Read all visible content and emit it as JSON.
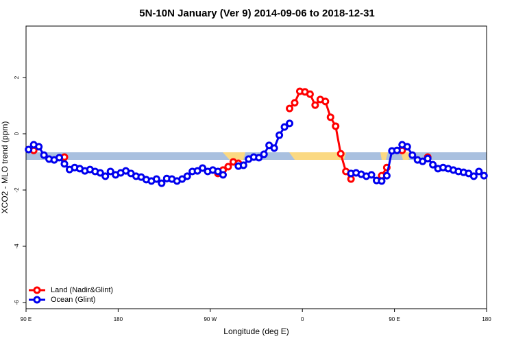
{
  "chart_data": {
    "type": "line",
    "title": "5N-10N January (Ver 9)   2014-09-06 to 2018-12-31",
    "xlabel": "Longitude (deg E)",
    "ylabel": "XCO2 - MLO trend (ppm)",
    "xlim": [
      90,
      540
    ],
    "ylim": [
      -6.22,
      3.83
    ],
    "xticks": [
      {
        "value": 90,
        "label": "90 E"
      },
      180,
      {
        "value": 270,
        "label": "90 W"
      },
      {
        "value": 360,
        "label": "0"
      },
      {
        "value": 450,
        "label": "90 E"
      },
      {
        "value": 540,
        "label": "180"
      }
    ],
    "yticks": [
      2,
      0,
      -2,
      -4,
      -6
    ],
    "legend": "bottom-left",
    "x": [
      92.5,
      97.5,
      102.5,
      107.5,
      112.5,
      117.5,
      122.5,
      127.5,
      132.5,
      137.5,
      142.5,
      147.5,
      152.5,
      157.5,
      162.5,
      167.5,
      172.5,
      177.5,
      182.5,
      187.5,
      192.5,
      197.5,
      202.5,
      207.5,
      212.5,
      217.5,
      222.5,
      227.5,
      232.5,
      237.5,
      242.5,
      247.5,
      252.5,
      257.5,
      262.5,
      267.5,
      272.5,
      277.5,
      282.5,
      287.5,
      292.5,
      297.5,
      302.5,
      307.5,
      312.5,
      317.5,
      322.5,
      327.5,
      332.5,
      337.5,
      342.5,
      347.5,
      352.5,
      357.5,
      362.5,
      367.5,
      372.5,
      377.5,
      382.5,
      387.5,
      392.5,
      397.5,
      402.5,
      407.5,
      412.5,
      417.5,
      422.5,
      427.5,
      432.5,
      437.5,
      442.5,
      447.5,
      452.5,
      457.5,
      462.5,
      467.5,
      472.5,
      477.5,
      482.5,
      487.5,
      492.5,
      497.5,
      502.5,
      507.5,
      512.5,
      517.5,
      522.5,
      527.5,
      532.5,
      537.5
    ],
    "series": [
      {
        "name": "Land (Nadir&Glint)",
        "color": "#ff0000",
        "values": [
          null,
          -0.59,
          null,
          null,
          null,
          null,
          null,
          -0.83,
          null,
          null,
          null,
          null,
          null,
          null,
          null,
          null,
          null,
          null,
          null,
          null,
          null,
          null,
          null,
          null,
          null,
          null,
          null,
          null,
          null,
          null,
          null,
          null,
          null,
          null,
          null,
          null,
          null,
          -1.41,
          -1.29,
          -1.17,
          -1.0,
          -1.05,
          null,
          null,
          null,
          null,
          null,
          null,
          null,
          null,
          null,
          0.9,
          1.1,
          1.51,
          1.49,
          1.41,
          1.02,
          1.22,
          1.15,
          0.59,
          0.27,
          -0.71,
          -1.34,
          -1.61,
          null,
          null,
          null,
          null,
          null,
          -1.49,
          -1.2,
          null,
          null,
          -0.59,
          null,
          null,
          null,
          null,
          -0.83,
          null,
          null,
          null,
          null,
          null,
          null,
          null,
          null,
          null,
          null,
          null
        ]
      },
      {
        "name": "Ocean (Glint)",
        "color": "#0000ee",
        "values": [
          -0.56,
          -0.39,
          -0.46,
          -0.76,
          -0.9,
          -0.93,
          -0.85,
          -1.07,
          -1.27,
          -1.2,
          -1.24,
          -1.32,
          -1.27,
          -1.34,
          -1.39,
          -1.51,
          -1.34,
          -1.46,
          -1.39,
          -1.32,
          -1.41,
          -1.51,
          -1.54,
          -1.63,
          -1.68,
          -1.61,
          -1.76,
          -1.59,
          -1.61,
          -1.68,
          -1.61,
          -1.51,
          -1.34,
          -1.32,
          -1.22,
          -1.34,
          -1.29,
          -1.34,
          -1.46,
          null,
          null,
          -1.15,
          -1.12,
          -0.9,
          -0.83,
          -0.85,
          -0.73,
          -0.41,
          -0.51,
          -0.05,
          0.24,
          0.37,
          null,
          null,
          null,
          null,
          null,
          null,
          null,
          null,
          null,
          null,
          null,
          -1.41,
          -1.39,
          -1.44,
          -1.51,
          -1.46,
          -1.66,
          -1.68,
          -1.49,
          -0.61,
          -0.59,
          -0.39,
          -0.46,
          -0.76,
          -0.93,
          -0.98,
          -0.88,
          -1.1,
          -1.24,
          -1.2,
          -1.24,
          -1.29,
          -1.34,
          -1.37,
          -1.41,
          -1.51,
          -1.34,
          -1.49
        ]
      }
    ]
  }
}
